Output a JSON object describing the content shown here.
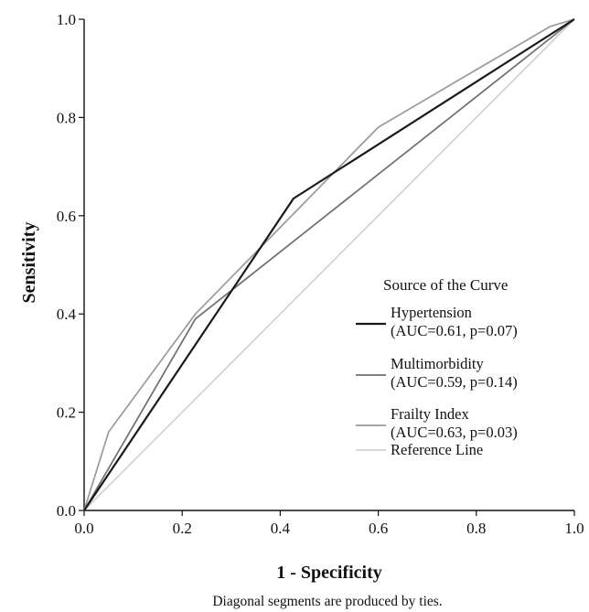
{
  "chart_data": {
    "type": "line",
    "xlabel": "1 - Specificity",
    "ylabel": "Sensitivity",
    "xlim": [
      0,
      1
    ],
    "ylim": [
      0,
      1
    ],
    "xticks": [
      "0.0",
      "0.2",
      "0.4",
      "0.6",
      "0.8",
      "1.0"
    ],
    "yticks": [
      "0.0",
      "0.2",
      "0.4",
      "0.6",
      "0.8",
      "1.0"
    ],
    "grid": false,
    "legend_position": "right",
    "legend_title": "Source of the Curve",
    "footnote": "Diagonal segments are produced by ties.",
    "series": [
      {
        "name": "Hypertension",
        "name_line2": "(AUC=0.61, p=0.07)",
        "color": "#1a1a1a",
        "x": [
          0.0,
          0.427,
          1.0
        ],
        "y": [
          0.0,
          0.635,
          1.0
        ]
      },
      {
        "name": "Multimorbidity",
        "name_line2": "(AUC=0.59, p=0.14)",
        "color": "#6e6e6e",
        "x": [
          0.0,
          0.227,
          1.0
        ],
        "y": [
          0.0,
          0.39,
          1.0
        ]
      },
      {
        "name": "Frailty Index",
        "name_line2": "(AUC=0.63, p=0.03)",
        "color": "#9a9a9a",
        "x": [
          0.0,
          0.05,
          0.227,
          0.6,
          0.95,
          1.0
        ],
        "y": [
          0.0,
          0.16,
          0.4,
          0.78,
          0.985,
          1.0
        ]
      },
      {
        "name": "Reference Line",
        "name_line2": "",
        "color": "#d2d2d2",
        "x": [
          0.0,
          1.0
        ],
        "y": [
          0.0,
          1.0
        ]
      }
    ]
  }
}
